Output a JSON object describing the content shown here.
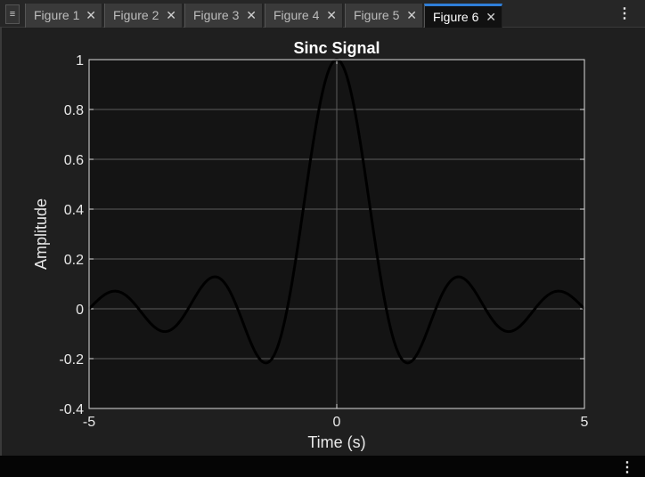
{
  "tabs": [
    {
      "label": "Figure 1",
      "active": false
    },
    {
      "label": "Figure 2",
      "active": false
    },
    {
      "label": "Figure 3",
      "active": false
    },
    {
      "label": "Figure 4",
      "active": false
    },
    {
      "label": "Figure 5",
      "active": false
    },
    {
      "label": "Figure 6",
      "active": true
    }
  ],
  "icons": {
    "close": "close-icon",
    "menu": "more-options-icon",
    "doc_menu": "document-menu-icon"
  },
  "colors": {
    "accent": "#2f7ed8",
    "axes_bg": "#141414",
    "line": "#000000"
  },
  "chart_data": {
    "type": "line",
    "title": "Sinc Signal",
    "xlabel": "Time (s)",
    "ylabel": "Amplitude",
    "xlim": [
      -5,
      5
    ],
    "ylim": [
      -0.4,
      1
    ],
    "xticks": [
      -5,
      0,
      5
    ],
    "xtick_labels": [
      "-5",
      "0",
      "5"
    ],
    "yticks": [
      -0.4,
      -0.2,
      0,
      0.2,
      0.4,
      0.6,
      0.8,
      1
    ],
    "ytick_labels": [
      "-0.4",
      "-0.2",
      "0",
      "0.2",
      "0.4",
      "0.6",
      "0.8",
      "1"
    ],
    "grid": true,
    "series": [
      {
        "function": "sin(pi*t)/(pi*t)",
        "x": [
          -5,
          -4.5,
          -4,
          -3.5,
          -3,
          -2.5,
          -2,
          -1.5,
          -1,
          -0.5,
          0,
          0.5,
          1,
          1.5,
          2,
          2.5,
          3,
          3.5,
          4,
          4.5,
          5
        ],
        "y": [
          0,
          0.071,
          0,
          -0.091,
          0,
          0.127,
          0,
          -0.212,
          0,
          0.637,
          1,
          0.637,
          0,
          -0.212,
          0,
          0.127,
          0,
          -0.091,
          0,
          0.071,
          0
        ]
      }
    ]
  }
}
